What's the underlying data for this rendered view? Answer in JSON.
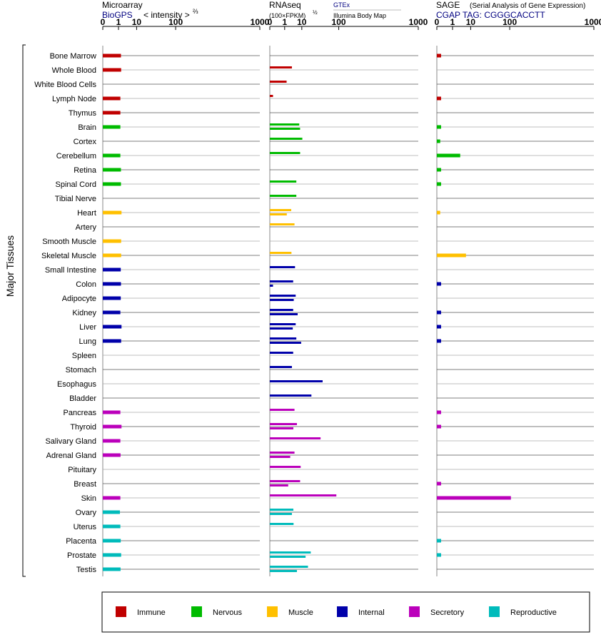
{
  "side_label": "Major Tissues",
  "panels": {
    "microarray": {
      "title": "Microarray",
      "source": "BioGPS",
      "unit_label": "< intensity >",
      "unit_exp": "⅔"
    },
    "rnaseq": {
      "title": "RNAseq",
      "unit_label": "(100×FPKM)",
      "unit_exp": "½",
      "source_primary": "GTEx",
      "source_secondary": "Illumina Body Map"
    },
    "sage": {
      "title": "SAGE",
      "subtitle": "(Serial Analysis of Gene Expression)",
      "tag_label": "CGAP TAG: CGGGCACCTT"
    }
  },
  "colors": {
    "Immune": "#c00000",
    "Nervous": "#00bb00",
    "Muscle": "#ffc000",
    "Internal": "#0000aa",
    "Secretory": "#bb00bb",
    "Reproductive": "#00bbbb"
  },
  "legend": [
    "Immune",
    "Nervous",
    "Muscle",
    "Internal",
    "Secretory",
    "Reproductive"
  ],
  "chart_data": {
    "type": "bar",
    "orientation": "horizontal",
    "x_scale": "power",
    "x_ticks": [
      "0",
      "1",
      "10",
      "100",
      "1000"
    ],
    "tick_values": [
      0,
      1,
      10,
      100,
      1000
    ],
    "xlim": [
      0,
      1000
    ],
    "grid": true,
    "legend_position": "bottom",
    "categories": [
      {
        "tissue": "Bone Marrow",
        "system": "Immune",
        "microarray": 1.55,
        "rnaseq": [
          null,
          null
        ],
        "sage": 0.02
      },
      {
        "tissue": "Whole Blood",
        "system": "Immune",
        "microarray": 1.6,
        "rnaseq": [
          3.3,
          null
        ],
        "sage": 0
      },
      {
        "tissue": "White Blood Cells",
        "system": "Immune",
        "microarray": null,
        "rnaseq": [
          1.45,
          null
        ],
        "sage": 0
      },
      {
        "tissue": "Lymph Node",
        "system": "Immune",
        "microarray": 1.4,
        "rnaseq": [
          0.01,
          null
        ],
        "sage": 0.02
      },
      {
        "tissue": "Thymus",
        "system": "Immune",
        "microarray": 1.4,
        "rnaseq": [
          null,
          null
        ],
        "sage": 0
      },
      {
        "tissue": "Brain",
        "system": "Nervous",
        "microarray": 1.4,
        "rnaseq": [
          7.8,
          8.5
        ],
        "sage": 0.02
      },
      {
        "tissue": "Cortex",
        "system": "Nervous",
        "microarray": null,
        "rnaseq": [
          10.5,
          null
        ],
        "sage": 0.01
      },
      {
        "tissue": "Cerebellum",
        "system": "Nervous",
        "microarray": 1.4,
        "rnaseq": [
          8.5,
          null
        ],
        "sage": 3.3
      },
      {
        "tissue": "Retina",
        "system": "Nervous",
        "microarray": 1.55,
        "rnaseq": [
          null,
          null
        ],
        "sage": 0.02
      },
      {
        "tissue": "Spinal Cord",
        "system": "Nervous",
        "microarray": 1.55,
        "rnaseq": [
          5.7,
          null
        ],
        "sage": 0.02
      },
      {
        "tissue": "Tibial Nerve",
        "system": "Nervous",
        "microarray": null,
        "rnaseq": [
          5.7,
          null
        ],
        "sage": 0
      },
      {
        "tissue": "Heart",
        "system": "Muscle",
        "microarray": 1.7,
        "rnaseq": [
          3.0,
          1.5
        ],
        "sage": 0.01
      },
      {
        "tissue": "Artery",
        "system": "Muscle",
        "microarray": null,
        "rnaseq": [
          4.6,
          null
        ],
        "sage": 0
      },
      {
        "tissue": "Smooth Muscle",
        "system": "Muscle",
        "microarray": 1.6,
        "rnaseq": [
          null,
          null
        ],
        "sage": 0
      },
      {
        "tissue": "Skeletal Muscle",
        "system": "Muscle",
        "microarray": 1.6,
        "rnaseq": [
          3.1,
          null
        ],
        "sage": 6.4
      },
      {
        "tissue": "Small Intestine",
        "system": "Internal",
        "microarray": 1.5,
        "rnaseq": [
          4.9,
          null
        ],
        "sage": 0
      },
      {
        "tissue": "Colon",
        "system": "Internal",
        "microarray": 1.55,
        "rnaseq": [
          3.9,
          0.01
        ],
        "sage": 0.02
      },
      {
        "tissue": "Adipocyte",
        "system": "Internal",
        "microarray": 1.5,
        "rnaseq": [
          5.3,
          4.2
        ],
        "sage": 0
      },
      {
        "tissue": "Kidney",
        "system": "Internal",
        "microarray": 1.4,
        "rnaseq": [
          3.9,
          6.6
        ],
        "sage": 0.02
      },
      {
        "tissue": "Liver",
        "system": "Internal",
        "microarray": 1.7,
        "rnaseq": [
          5.3,
          3.7
        ],
        "sage": 0.02
      },
      {
        "tissue": "Lung",
        "system": "Internal",
        "microarray": 1.6,
        "rnaseq": [
          5.7,
          9.4
        ],
        "sage": 0.02
      },
      {
        "tissue": "Spleen",
        "system": "Internal",
        "microarray": null,
        "rnaseq": [
          3.9,
          null
        ],
        "sage": 0
      },
      {
        "tissue": "Stomach",
        "system": "Internal",
        "microarray": null,
        "rnaseq": [
          3.3,
          null
        ],
        "sage": 0
      },
      {
        "tissue": "Esophagus",
        "system": "Internal",
        "microarray": null,
        "rnaseq": [
          45,
          null
        ],
        "sage": 0
      },
      {
        "tissue": "Bladder",
        "system": "Internal",
        "microarray": null,
        "rnaseq": [
          22,
          null
        ],
        "sage": 0
      },
      {
        "tissue": "Pancreas",
        "system": "Secretory",
        "microarray": 1.4,
        "rnaseq": [
          4.6,
          null
        ],
        "sage": 0.02
      },
      {
        "tissue": "Thyroid",
        "system": "Secretory",
        "microarray": 1.7,
        "rnaseq": [
          6.1,
          4.0
        ],
        "sage": 0.02
      },
      {
        "tissue": "Salivary Gland",
        "system": "Secretory",
        "microarray": 1.4,
        "rnaseq": [
          40,
          null
        ],
        "sage": 0
      },
      {
        "tissue": "Adrenal Gland",
        "system": "Secretory",
        "microarray": 1.45,
        "rnaseq": [
          4.6,
          2.6
        ],
        "sage": 0
      },
      {
        "tissue": "Pituitary",
        "system": "Secretory",
        "microarray": null,
        "rnaseq": [
          9.0,
          null
        ],
        "sage": 0
      },
      {
        "tissue": "Breast",
        "system": "Secretory",
        "microarray": null,
        "rnaseq": [
          8.5,
          1.9
        ],
        "sage": 0.02
      },
      {
        "tissue": "Skin",
        "system": "Secretory",
        "microarray": 1.4,
        "rnaseq": [
          90,
          null
        ],
        "sage": 105
      },
      {
        "tissue": "Ovary",
        "system": "Reproductive",
        "microarray": 1.3,
        "rnaseq": [
          4.0,
          3.3
        ],
        "sage": 0
      },
      {
        "tissue": "Uterus",
        "system": "Reproductive",
        "microarray": 1.4,
        "rnaseq": [
          4.1,
          null
        ],
        "sage": 0
      },
      {
        "tissue": "Placenta",
        "system": "Reproductive",
        "microarray": 1.5,
        "rnaseq": [
          null,
          null
        ],
        "sage": 0.02
      },
      {
        "tissue": "Prostate",
        "system": "Reproductive",
        "microarray": 1.6,
        "rnaseq": [
          21,
          14
        ],
        "sage": 0.02
      },
      {
        "tissue": "Testis",
        "system": "Reproductive",
        "microarray": 1.45,
        "rnaseq": [
          17,
          6.1
        ],
        "sage": 0
      }
    ]
  }
}
